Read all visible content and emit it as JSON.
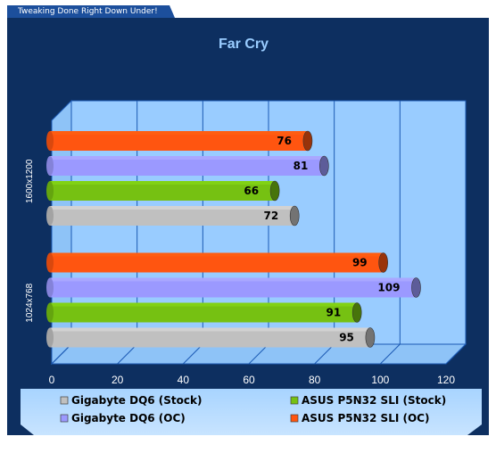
{
  "banner": {
    "text": "Tweaking Done Right Down Under!"
  },
  "colors": {
    "background": "#0d2f60",
    "plot_area": "#99ccff",
    "grid": "#1c5ab4",
    "title": "#99ccff",
    "series": [
      "#c0c0c0",
      "#76c112",
      "#9b99ff",
      "#ff5510"
    ]
  },
  "chart_data": {
    "type": "bar",
    "orientation": "horizontal",
    "title": "Far Cry",
    "xlabel": "",
    "ylabel": "",
    "categories": [
      "1600x1200",
      "1024x768"
    ],
    "series": [
      {
        "name": "Gigabyte DQ6 (Stock)",
        "values": [
          72,
          95
        ]
      },
      {
        "name": "ASUS P5N32 SLI (Stock)",
        "values": [
          66,
          91
        ]
      },
      {
        "name": "Gigabyte DQ6 (OC)",
        "values": [
          81,
          109
        ]
      },
      {
        "name": "ASUS P5N32 SLI (OC)",
        "values": [
          76,
          99
        ]
      }
    ],
    "xlim": [
      0,
      120
    ],
    "x_ticks": [
      "0",
      "20",
      "40",
      "60",
      "80",
      "100",
      "120"
    ],
    "grid": true,
    "legend_position": "bottom"
  }
}
